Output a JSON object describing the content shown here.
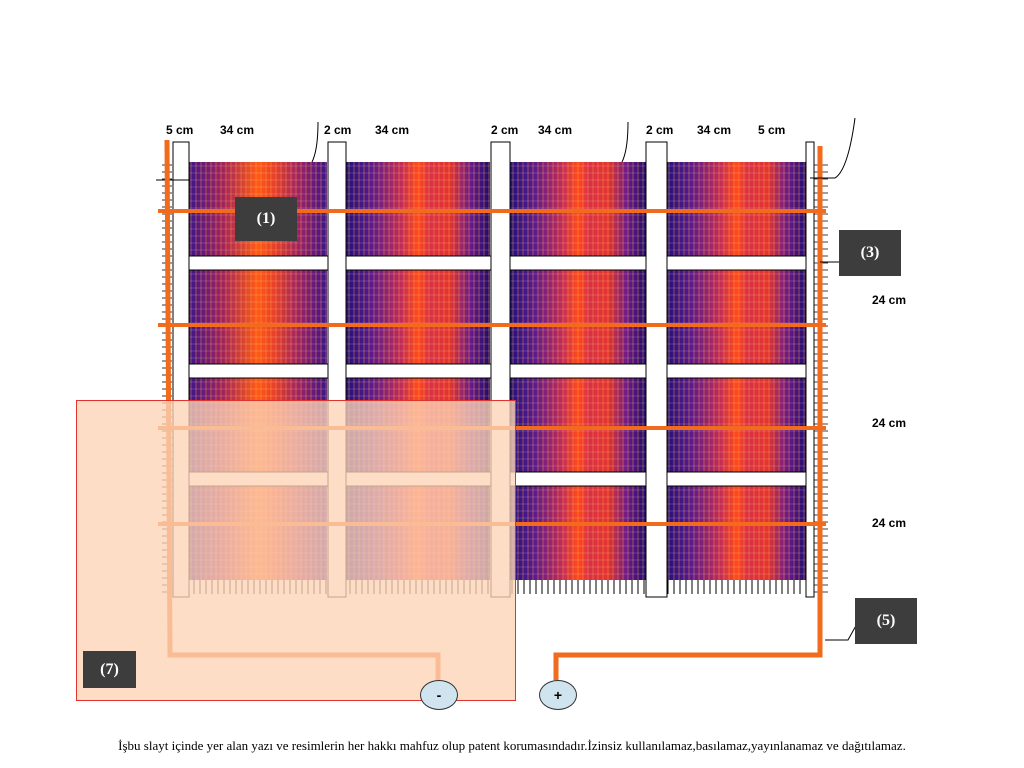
{
  "dimensions": {
    "top": [
      "5 cm",
      "34 cm",
      "2 cm",
      "34 cm",
      "2 cm",
      "34 cm",
      "2 cm",
      "34 cm",
      "5 cm"
    ],
    "right": [
      "24 cm",
      "24 cm",
      "24 cm"
    ]
  },
  "labels": {
    "l1": "(1)",
    "l3": "(3)",
    "l5": "(5)",
    "l7": "(7)"
  },
  "terminals": {
    "negative": "-",
    "positive": "+"
  },
  "footer": "İşbu slayt içinde yer alan yazı ve resimlerin  her  hakkı mahfuz olup patent korumasındadır.İzinsiz kullanılamaz,basılamaz,yayınlanamaz ve dağıtılamaz.",
  "colors": {
    "conductor": "#f26a1b",
    "panel_dark": "#2a0a7a",
    "panel_hot": "#ff4a1a",
    "label_box": "#3d3d3d",
    "overlay": "#fcd4b6",
    "overlay_border": "#e0332c",
    "terminal": "#cfe4ee"
  }
}
